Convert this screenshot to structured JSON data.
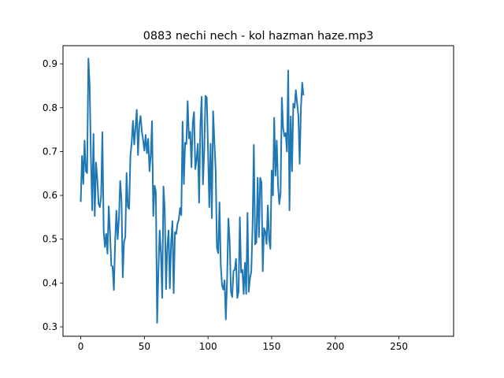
{
  "chart_data": {
    "type": "line",
    "title": "0883 nechi nech - kol hazman haze.mp3",
    "xlabel": "",
    "ylabel": "",
    "xlim": [
      -13.95,
      292.95
    ],
    "ylim": [
      0.2785,
      0.9415
    ],
    "x_ticks": [
      0,
      50,
      100,
      150,
      200,
      250
    ],
    "y_ticks": [
      0.3,
      0.4,
      0.5,
      0.6,
      0.7,
      0.8,
      0.9
    ],
    "x_tick_labels": [
      "0",
      "50",
      "100",
      "150",
      "200",
      "250"
    ],
    "y_tick_labels": [
      "0.3",
      "0.4",
      "0.5",
      "0.6",
      "0.7",
      "0.8",
      "0.9"
    ],
    "grid": false,
    "legend": "none",
    "series_color": "#1f77b4",
    "x_start": 0,
    "x_step": 1,
    "values": [
      0.585,
      0.69,
      0.626,
      0.725,
      0.655,
      0.651,
      0.912,
      0.85,
      0.685,
      0.566,
      0.74,
      0.553,
      0.675,
      0.637,
      0.581,
      0.573,
      0.598,
      0.744,
      0.52,
      0.482,
      0.512,
      0.467,
      0.575,
      0.513,
      0.44,
      0.438,
      0.384,
      0.493,
      0.565,
      0.5,
      0.548,
      0.633,
      0.59,
      0.413,
      0.494,
      0.505,
      0.651,
      0.574,
      0.569,
      0.689,
      0.72,
      0.77,
      0.716,
      0.754,
      0.795,
      0.692,
      0.762,
      0.781,
      0.746,
      0.726,
      0.702,
      0.738,
      0.696,
      0.729,
      0.655,
      0.691,
      0.769,
      0.553,
      0.622,
      0.608,
      0.309,
      0.425,
      0.52,
      0.468,
      0.366,
      0.62,
      0.567,
      0.386,
      0.483,
      0.52,
      0.388,
      0.492,
      0.541,
      0.377,
      0.516,
      0.512,
      0.535,
      0.544,
      0.571,
      0.555,
      0.768,
      0.626,
      0.72,
      0.717,
      0.815,
      0.73,
      0.745,
      0.664,
      0.765,
      0.79,
      0.66,
      0.682,
      0.718,
      0.583,
      0.76,
      0.825,
      0.625,
      0.7,
      0.827,
      0.823,
      0.705,
      0.573,
      0.718,
      0.548,
      0.792,
      0.723,
      0.658,
      0.48,
      0.468,
      0.584,
      0.441,
      0.395,
      0.385,
      0.406,
      0.317,
      0.409,
      0.547,
      0.496,
      0.38,
      0.368,
      0.428,
      0.43,
      0.455,
      0.366,
      0.38,
      0.55,
      0.424,
      0.43,
      0.375,
      0.446,
      0.375,
      0.56,
      0.38,
      0.412,
      0.426,
      0.53,
      0.715,
      0.488,
      0.493,
      0.64,
      0.505,
      0.64,
      0.63,
      0.427,
      0.525,
      0.517,
      0.489,
      0.577,
      0.5,
      0.478,
      0.657,
      0.6,
      0.777,
      0.645,
      0.725,
      0.623,
      0.58,
      0.605,
      0.823,
      0.754,
      0.735,
      0.742,
      0.7,
      0.885,
      0.566,
      0.78,
      0.655,
      0.809,
      0.8,
      0.84,
      0.81,
      0.782,
      0.672,
      0.8,
      0.857,
      0.828
    ]
  }
}
